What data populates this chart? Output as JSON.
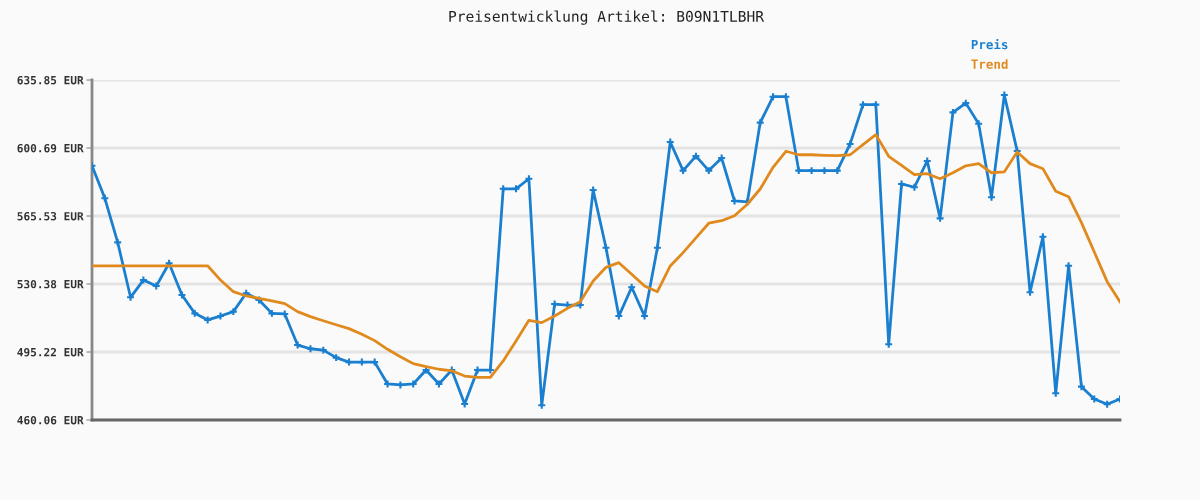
{
  "chart_data": {
    "type": "line",
    "title": "Preisentwicklung Artikel: B09N1TLBHR",
    "categories": [
      null,
      null,
      null,
      null,
      null,
      null,
      null,
      null,
      null,
      null,
      null,
      null,
      null,
      null,
      null,
      null,
      null,
      null,
      null,
      null,
      null,
      null,
      null,
      null,
      null,
      null,
      null,
      null,
      null,
      null,
      null,
      null,
      null,
      null,
      null,
      null,
      null,
      null,
      null,
      null,
      null,
      null,
      null,
      null,
      null,
      null,
      null,
      null,
      null,
      null,
      null,
      null,
      null,
      null,
      null,
      null,
      null,
      null,
      null,
      null,
      null,
      null,
      null,
      null,
      null,
      null,
      null,
      null,
      null,
      null,
      null,
      null,
      null,
      null,
      null,
      null,
      null,
      null,
      null,
      null,
      null
    ],
    "series": [
      {
        "name": "Preis",
        "color": "#1a7fcf",
        "marker": "cross",
        "values": [
          591.5,
          574.7,
          551.9,
          523.5,
          532.4,
          529.3,
          541.1,
          524.7,
          515.2,
          511.8,
          513.8,
          516.1,
          525.6,
          522.1,
          515.2,
          514.9,
          498.8,
          496.9,
          496.2,
          492.3,
          490.0,
          490.0,
          490.0,
          478.7,
          478.2,
          478.7,
          485.9,
          478.7,
          485.9,
          468.3,
          485.9,
          485.9,
          579.6,
          579.6,
          584.8,
          467.7,
          520.0,
          519.5,
          519.5,
          579.0,
          549.1,
          513.8,
          528.7,
          513.8,
          549.1,
          603.8,
          589.0,
          596.5,
          589.0,
          595.5,
          573.3,
          572.8,
          613.8,
          627.2,
          627.2,
          589.0,
          589.0,
          589.0,
          589.0,
          602.8,
          623.1,
          623.1,
          499.2,
          582.1,
          580.4,
          594.0,
          564.3,
          619.1,
          623.9,
          613.2,
          575.2,
          628.1,
          599.1,
          526.1,
          554.8,
          473.9,
          539.8,
          477.3,
          470.9,
          468.2,
          470.9
        ]
      },
      {
        "name": "Trend",
        "color": "#e08a1e",
        "marker": "none",
        "values": [
          539.8,
          539.8,
          539.8,
          539.8,
          539.8,
          539.8,
          539.8,
          539.8,
          539.8,
          539.8,
          532.4,
          526.4,
          524.2,
          523.0,
          521.6,
          520.2,
          516.1,
          513.5,
          511.4,
          509.3,
          507.3,
          504.4,
          501.1,
          496.6,
          492.8,
          489.2,
          487.7,
          486.3,
          485.5,
          482.8,
          482.1,
          482.1,
          490.6,
          500.9,
          511.6,
          510.4,
          513.8,
          517.8,
          521.2,
          531.9,
          539.0,
          541.4,
          535.4,
          529.3,
          526.4,
          539.7,
          546.6,
          554.2,
          561.8,
          563.1,
          565.7,
          571.6,
          579.5,
          590.7,
          599.0,
          597.2,
          597.2,
          596.9,
          596.7,
          597.2,
          602.4,
          607.6,
          596.4,
          591.7,
          586.9,
          587.4,
          584.8,
          587.9,
          591.5,
          592.6,
          587.9,
          588.4,
          598.6,
          592.6,
          590.0,
          578.3,
          575.5,
          562.1,
          546.9,
          531.6,
          521.2
        ]
      }
    ],
    "ylim": [
      460.06,
      635.85
    ],
    "yticks": [
      {
        "value": 460.06,
        "label": "460.06 EUR"
      },
      {
        "value": 495.22,
        "label": "495.22 EUR"
      },
      {
        "value": 530.38,
        "label": "530.38 EUR"
      },
      {
        "value": 565.53,
        "label": "565.53 EUR"
      },
      {
        "value": 600.69,
        "label": "600.69 EUR"
      },
      {
        "value": 635.85,
        "label": "635.85 EUR"
      }
    ],
    "grid": "y",
    "legend": "top right",
    "line_style": "solid"
  }
}
